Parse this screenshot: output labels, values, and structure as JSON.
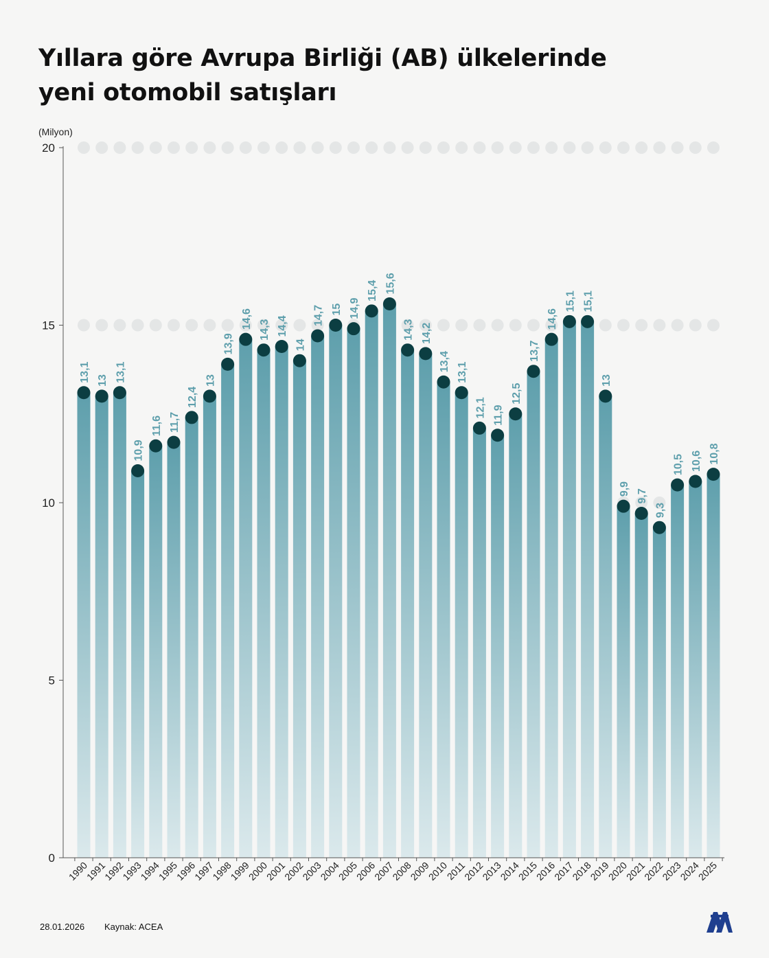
{
  "header": {
    "title_line1": "Yıllara göre Avrupa Birliği (AB) ülkelerinde",
    "title_line2": "yeni otomobil satışları"
  },
  "footer": {
    "date": "28.01.2026",
    "source": "Kaynak: ACEA",
    "logo_text": "AA"
  },
  "colors": {
    "bar_top": "#5e9fac",
    "bar_bottom": "#dbe9ec",
    "marker": "#0c3e42",
    "label": "#5e9fac",
    "grid_dot": "#e4e6e6"
  },
  "chart_data": {
    "type": "bar",
    "ylabel": "(Milyon)",
    "ylim": [
      0,
      20
    ],
    "yticks": [
      0,
      5,
      10,
      15,
      20
    ],
    "grid": true,
    "categories": [
      "1990",
      "1991",
      "1992",
      "1993",
      "1994",
      "1995",
      "1996",
      "1997",
      "1998",
      "1999",
      "2000",
      "2001",
      "2002",
      "2003",
      "2004",
      "2005",
      "2006",
      "2007",
      "2008",
      "2009",
      "2010",
      "2011",
      "2012",
      "2013",
      "2014",
      "2015",
      "2016",
      "2017",
      "2018",
      "2019",
      "2020",
      "2021",
      "2022",
      "2023",
      "2024",
      "2025"
    ],
    "values": [
      13.1,
      13,
      13.1,
      10.9,
      11.6,
      11.7,
      12.4,
      13,
      13.9,
      14.6,
      14.3,
      14.4,
      14,
      14.7,
      15,
      14.9,
      15.4,
      15.6,
      14.3,
      14.2,
      13.4,
      13.1,
      12.1,
      11.9,
      12.5,
      13.7,
      14.6,
      15.1,
      15.1,
      13,
      9.9,
      9.7,
      9.3,
      10.5,
      10.6,
      10.8
    ],
    "labels": [
      "13,1",
      "13",
      "13,1",
      "10,9",
      "11,6",
      "11,7",
      "12,4",
      "13",
      "13,9",
      "14,6",
      "14,3",
      "14,4",
      "14",
      "14,7",
      "15",
      "14,9",
      "15,4",
      "15,6",
      "14,3",
      "14,2",
      "13,4",
      "13,1",
      "12,1",
      "11,9",
      "12,5",
      "13,7",
      "14,6",
      "15,1",
      "15,1",
      "13",
      "9,9",
      "9,7",
      "9,3",
      "10,5",
      "10,6",
      "10,8"
    ]
  }
}
